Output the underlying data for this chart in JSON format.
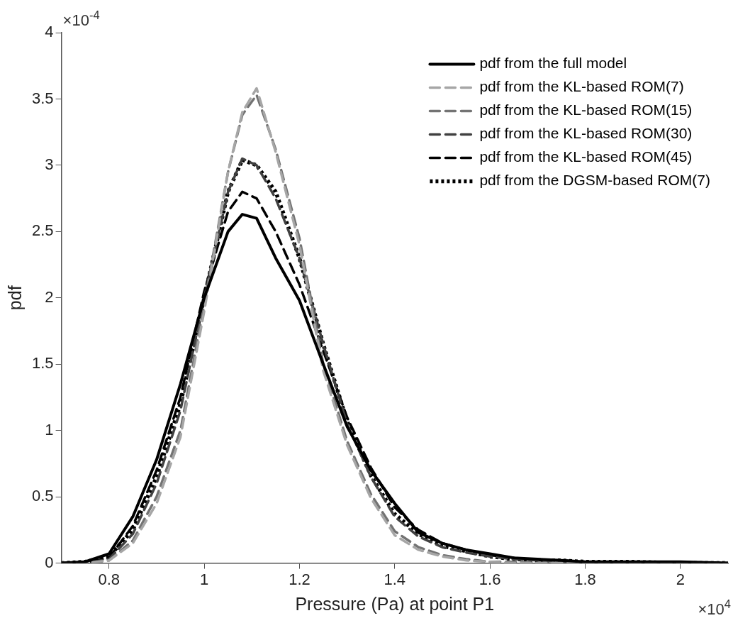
{
  "chart_data": {
    "type": "line",
    "xlabel": "Pressure (Pa) at point P1",
    "ylabel": "pdf",
    "x": [
      0.7,
      0.75,
      0.8,
      0.85,
      0.9,
      0.95,
      1.0,
      1.05,
      1.08,
      1.11,
      1.15,
      1.2,
      1.25,
      1.3,
      1.35,
      1.4,
      1.45,
      1.5,
      1.55,
      1.6,
      1.65,
      1.7,
      1.75,
      1.8,
      1.9,
      2.0,
      2.1
    ],
    "series": [
      {
        "name": "pdf from the full model",
        "color": "#000000",
        "line_style": "solid",
        "values": [
          0,
          0.01,
          0.07,
          0.35,
          0.78,
          1.35,
          2.0,
          2.5,
          2.63,
          2.6,
          2.3,
          1.98,
          1.5,
          1.03,
          0.7,
          0.45,
          0.23,
          0.15,
          0.1,
          0.07,
          0.04,
          0.03,
          0.02,
          0.01,
          0.01,
          0.01,
          0
        ]
      },
      {
        "name": "pdf from the KL-based ROM(7)",
        "color": "#a6a6a6",
        "line_style": "dashed",
        "values": [
          0,
          0,
          0.02,
          0.15,
          0.45,
          0.95,
          1.9,
          2.95,
          3.4,
          3.58,
          3.1,
          2.4,
          1.45,
          0.89,
          0.49,
          0.21,
          0.1,
          0.05,
          0.02,
          0.01,
          0,
          0,
          0,
          0,
          0,
          0,
          0
        ]
      },
      {
        "name": "pdf from the KL-based ROM(15)",
        "color": "#737373",
        "line_style": "dashed",
        "values": [
          0,
          0,
          0.02,
          0.17,
          0.5,
          1.0,
          1.95,
          2.95,
          3.38,
          3.53,
          3.12,
          2.45,
          1.5,
          0.92,
          0.52,
          0.24,
          0.12,
          0.06,
          0.03,
          0.01,
          0.01,
          0,
          0,
          0,
          0,
          0,
          0
        ]
      },
      {
        "name": "pdf from the KL-based ROM(30)",
        "color": "#404040",
        "line_style": "dashed",
        "values": [
          0,
          0,
          0.03,
          0.22,
          0.6,
          1.15,
          2.0,
          2.8,
          3.05,
          3.0,
          2.75,
          2.3,
          1.65,
          1.05,
          0.65,
          0.35,
          0.2,
          0.12,
          0.08,
          0.05,
          0.03,
          0.02,
          0.01,
          0.01,
          0,
          0,
          0
        ]
      },
      {
        "name": "pdf from the KL-based ROM(45)",
        "color": "#000000",
        "line_style": "dashed",
        "values": [
          0,
          0,
          0.04,
          0.28,
          0.7,
          1.25,
          2.05,
          2.65,
          2.8,
          2.75,
          2.5,
          2.1,
          1.6,
          1.1,
          0.72,
          0.42,
          0.25,
          0.15,
          0.1,
          0.06,
          0.04,
          0.02,
          0.02,
          0.01,
          0.01,
          0,
          0
        ]
      },
      {
        "name": "pdf from the DGSM-based ROM(7)",
        "color": "#000000",
        "line_style": "dotted",
        "values": [
          0,
          0.01,
          0.05,
          0.25,
          0.65,
          1.2,
          2.0,
          2.8,
          3.04,
          3.0,
          2.8,
          2.3,
          1.65,
          1.07,
          0.66,
          0.37,
          0.22,
          0.13,
          0.09,
          0.05,
          0.03,
          0.02,
          0.02,
          0.01,
          0.01,
          0,
          0
        ]
      }
    ],
    "xlim": [
      0.7,
      2.1
    ],
    "xticks": [
      0.8,
      1,
      1.2,
      1.4,
      1.6,
      1.8,
      2
    ],
    "ylim": [
      0,
      4
    ],
    "yticks": [
      0,
      0.5,
      1,
      1.5,
      2,
      2.5,
      3,
      3.5,
      4
    ],
    "grid": false,
    "legend": "top right",
    "marker": "none",
    "annotations": [
      "×10$^{-4}$",
      "×10$^{4}$"
    ]
  }
}
